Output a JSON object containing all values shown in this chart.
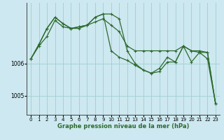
{
  "title": "Graphe pression niveau de la mer (hPa)",
  "background_color": "#cde8f0",
  "grid_color": "#9ecfcf",
  "line_color": "#2d6a2d",
  "ylim": [
    1004.4,
    1007.9
  ],
  "yticks": [
    1005,
    1006
  ],
  "xlim": [
    -0.5,
    23.5
  ],
  "xticks": [
    0,
    1,
    2,
    3,
    4,
    5,
    6,
    7,
    8,
    9,
    10,
    11,
    12,
    13,
    14,
    15,
    16,
    17,
    18,
    19,
    20,
    21,
    22,
    23
  ],
  "series": [
    [
      1006.15,
      1006.55,
      1006.85,
      1007.35,
      1007.15,
      1007.1,
      1007.1,
      1007.2,
      1007.3,
      1007.4,
      1007.2,
      1007.0,
      1006.55,
      1006.4,
      1006.4,
      1006.4,
      1006.4,
      1006.4,
      1006.4,
      1006.55,
      1006.4,
      1006.35,
      1006.35,
      1004.75
    ],
    [
      1006.15,
      1006.6,
      1007.1,
      1007.45,
      1007.25,
      1007.1,
      1007.15,
      1007.2,
      1007.45,
      1007.55,
      1007.55,
      1007.4,
      1006.4,
      1006.0,
      1005.8,
      1005.7,
      1005.75,
      1006.05,
      1006.05,
      1006.55,
      1006.4,
      1006.4,
      1006.35,
      1004.75
    ],
    [
      1006.15,
      1006.6,
      1007.1,
      1007.45,
      1007.25,
      1007.1,
      1007.15,
      1007.2,
      1007.45,
      1007.55,
      1006.4,
      1006.2,
      1006.1,
      1005.95,
      1005.8,
      1005.7,
      1005.85,
      1006.2,
      1006.05,
      1006.55,
      1006.05,
      1006.35,
      1006.15,
      1004.75
    ]
  ]
}
